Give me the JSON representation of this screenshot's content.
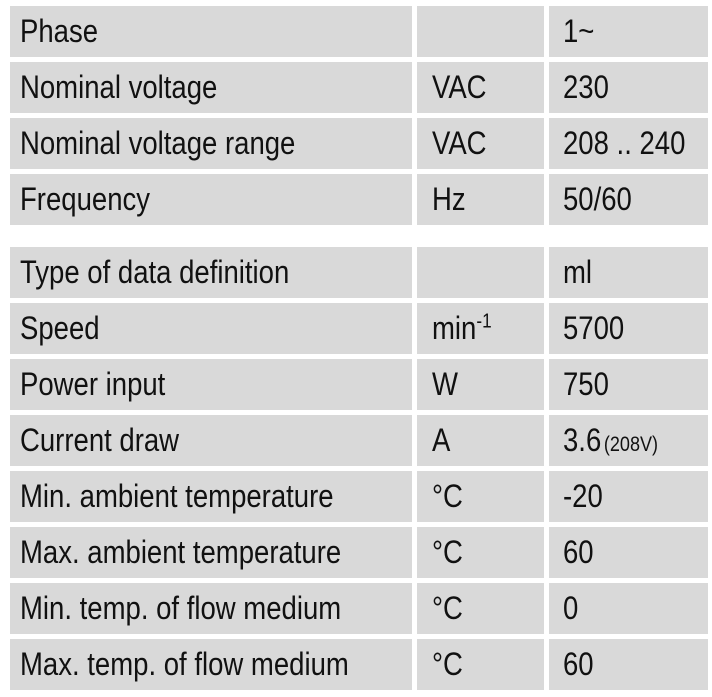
{
  "section1": {
    "rows": [
      {
        "label": "Phase",
        "unit": "",
        "value": "1~"
      },
      {
        "label": "Nominal voltage",
        "unit": "VAC",
        "value": "230"
      },
      {
        "label": "Nominal voltage range",
        "unit": "VAC",
        "value": "208 .. 240"
      },
      {
        "label": "Frequency",
        "unit": "Hz",
        "value": "50/60"
      }
    ]
  },
  "section2": {
    "rows": [
      {
        "label": "Type of data definition",
        "unit": "",
        "value": "ml"
      },
      {
        "label": "Speed",
        "unit": "min",
        "unit_sup": "-1",
        "value": "5700"
      },
      {
        "label": "Power input",
        "unit": "W",
        "value": "750"
      },
      {
        "label": "Current draw",
        "unit": "A",
        "value": "3.6",
        "value_note": "(208V)"
      },
      {
        "label": "Min. ambient temperature",
        "unit": "°C",
        "value": "-20"
      },
      {
        "label": "Max. ambient temperature",
        "unit": "°C",
        "value": "60"
      },
      {
        "label": "Min. temp. of flow medium",
        "unit": "°C",
        "value": "0"
      },
      {
        "label": "Max. temp. of flow medium",
        "unit": "°C",
        "value": "60"
      }
    ]
  }
}
